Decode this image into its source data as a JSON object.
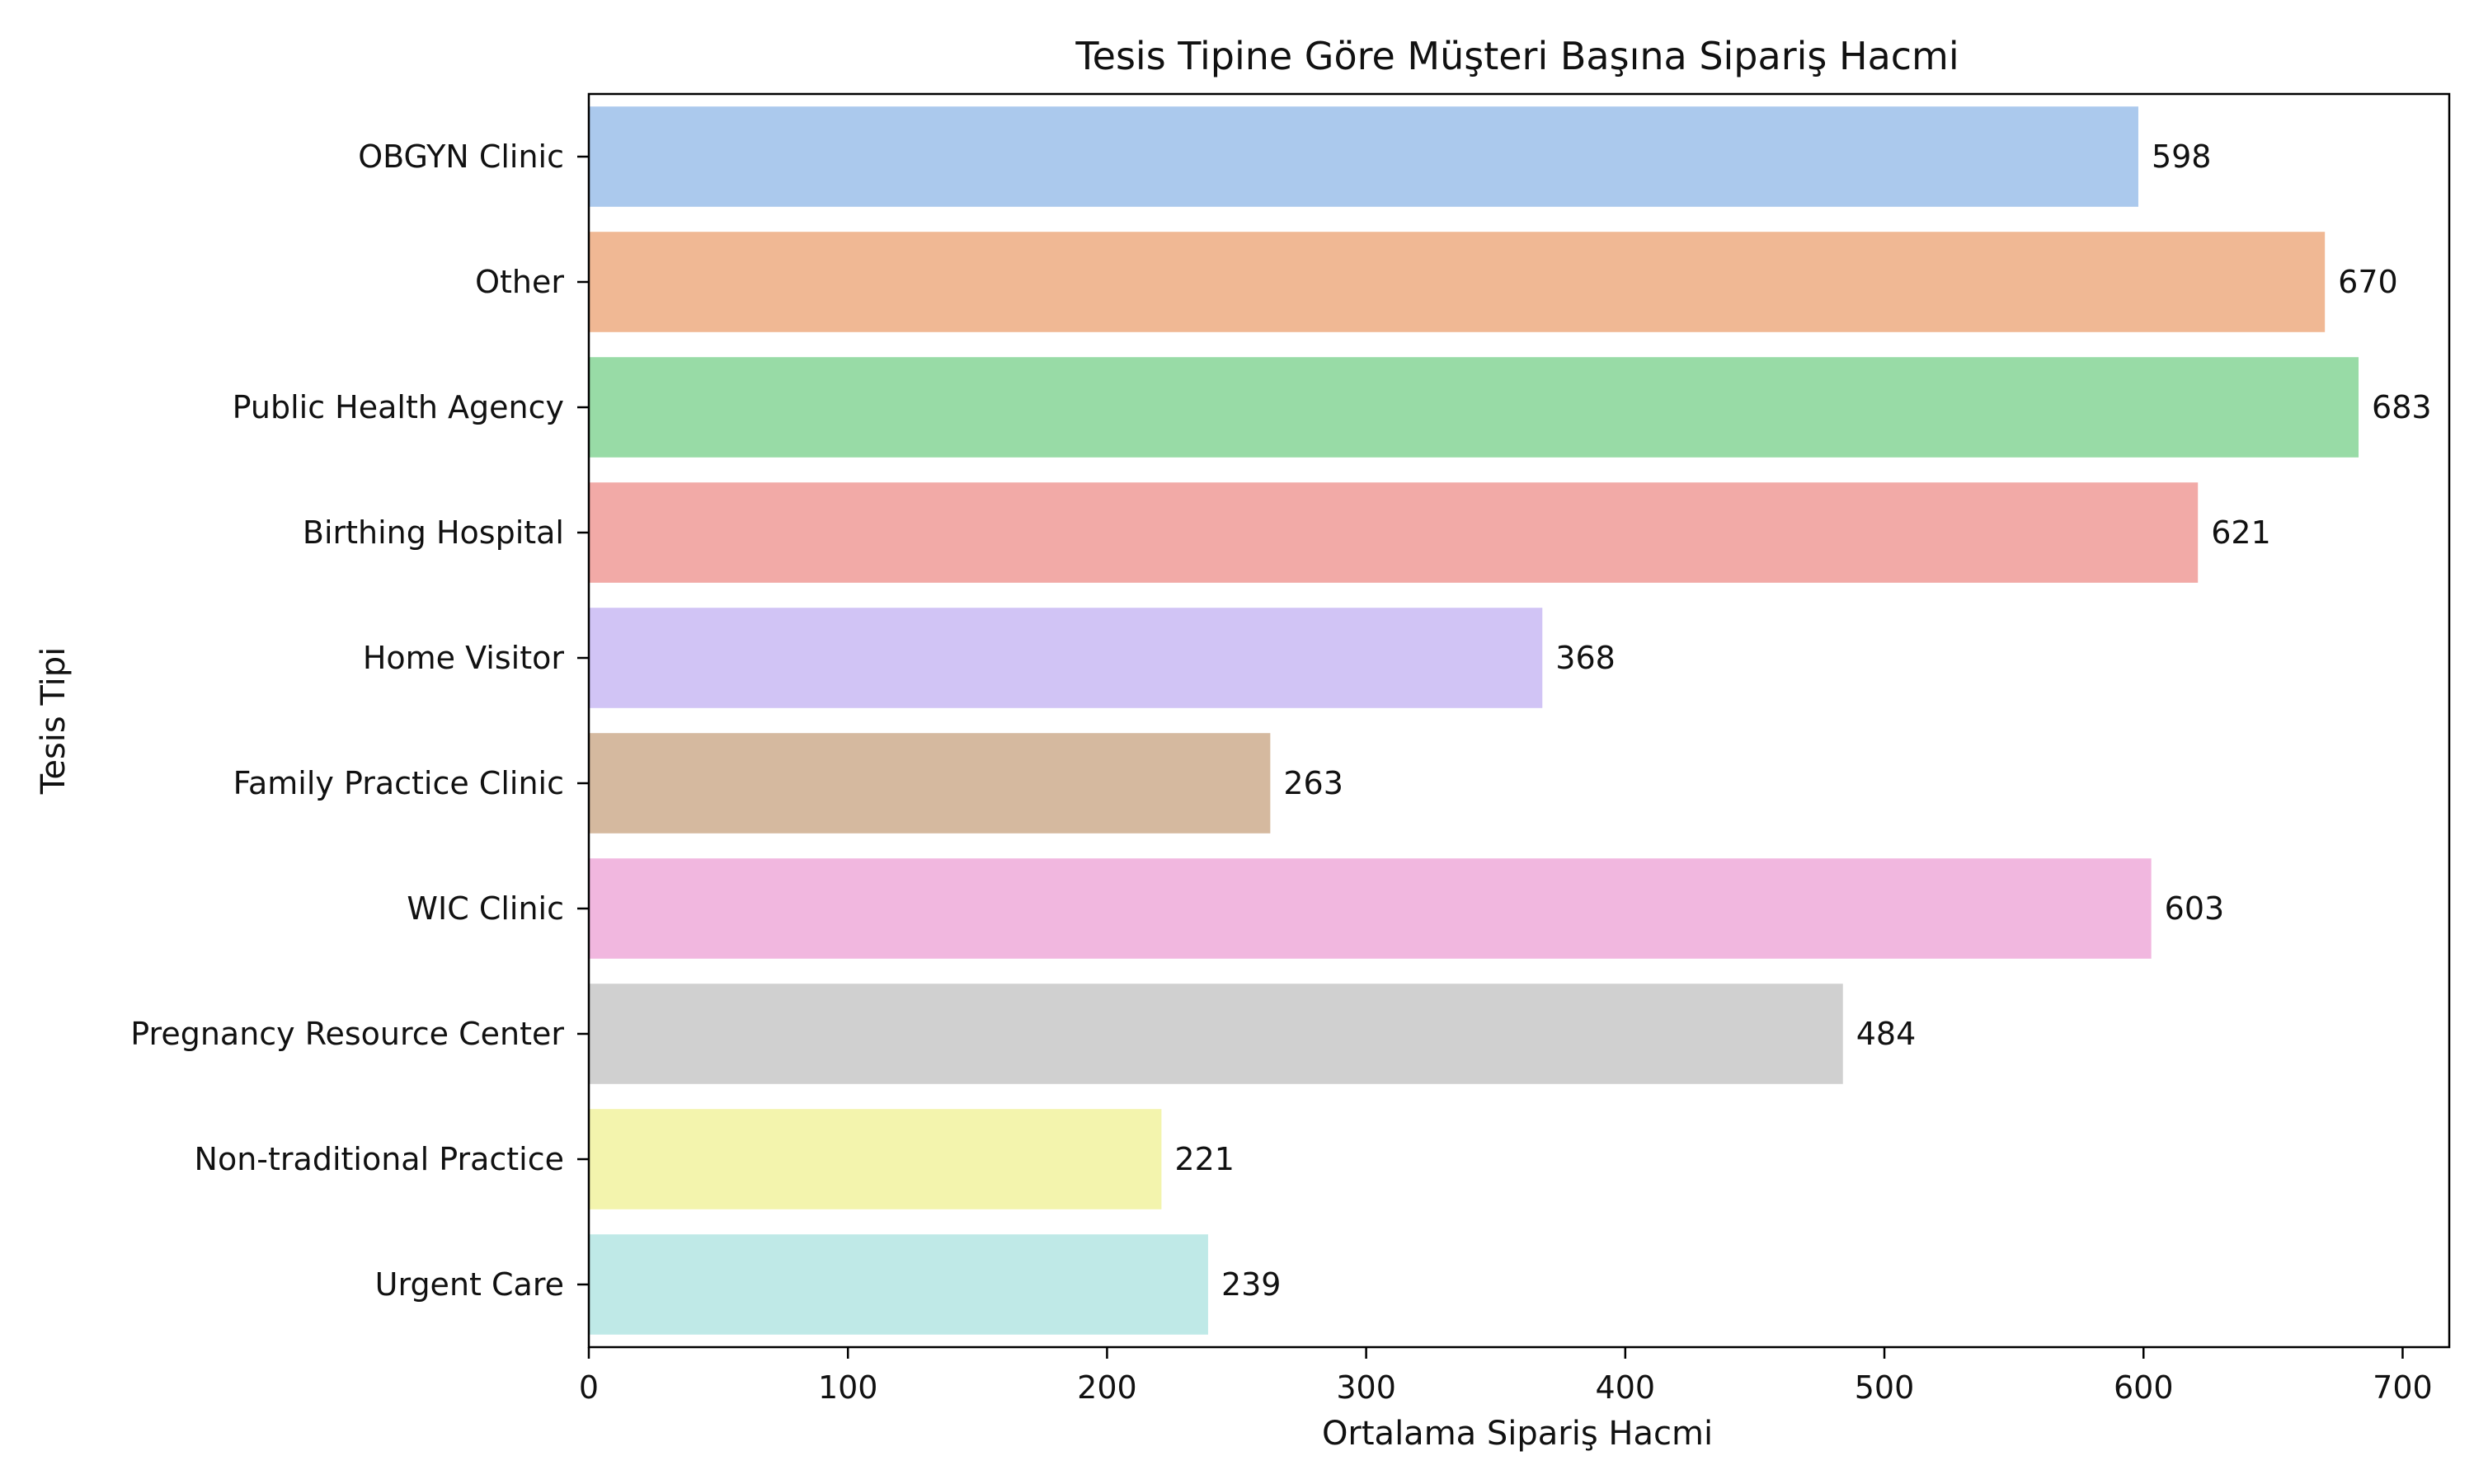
{
  "chart_data": {
    "type": "bar",
    "orientation": "horizontal",
    "title": "Tesis Tipine Göre Müşteri Başına Sipariş Hacmi",
    "xlabel": "Ortalama Sipariş Hacmi",
    "ylabel": "Tesis Tipi",
    "xlim": [
      0,
      718
    ],
    "xticks": [
      0,
      100,
      200,
      300,
      400,
      500,
      600,
      700
    ],
    "xtick_labels": [
      "0",
      "100",
      "200",
      "300",
      "400",
      "500",
      "600",
      "700"
    ],
    "grid": false,
    "legend": "none",
    "categories": [
      "OBGYN Clinic",
      "Other",
      "Public Health Agency",
      "Birthing Hospital",
      "Home Visitor",
      "Family Practice Clinic",
      "WIC Clinic",
      "Pregnancy Resource Center",
      "Non-traditional Practice",
      "Urgent Care"
    ],
    "values": [
      598,
      670,
      683,
      621,
      368,
      263,
      603,
      484,
      221,
      239
    ],
    "data_labels": [
      "598",
      "670",
      "683",
      "621",
      "368",
      "263",
      "603",
      "484",
      "221",
      "239"
    ],
    "colors": [
      "#abc9ed",
      "#f0b894",
      "#98dba6",
      "#f2aaa7",
      "#d1c4f5",
      "#d5b99f",
      "#f1b7df",
      "#d0d0d0",
      "#f3f4ad",
      "#bfe9e7"
    ]
  }
}
